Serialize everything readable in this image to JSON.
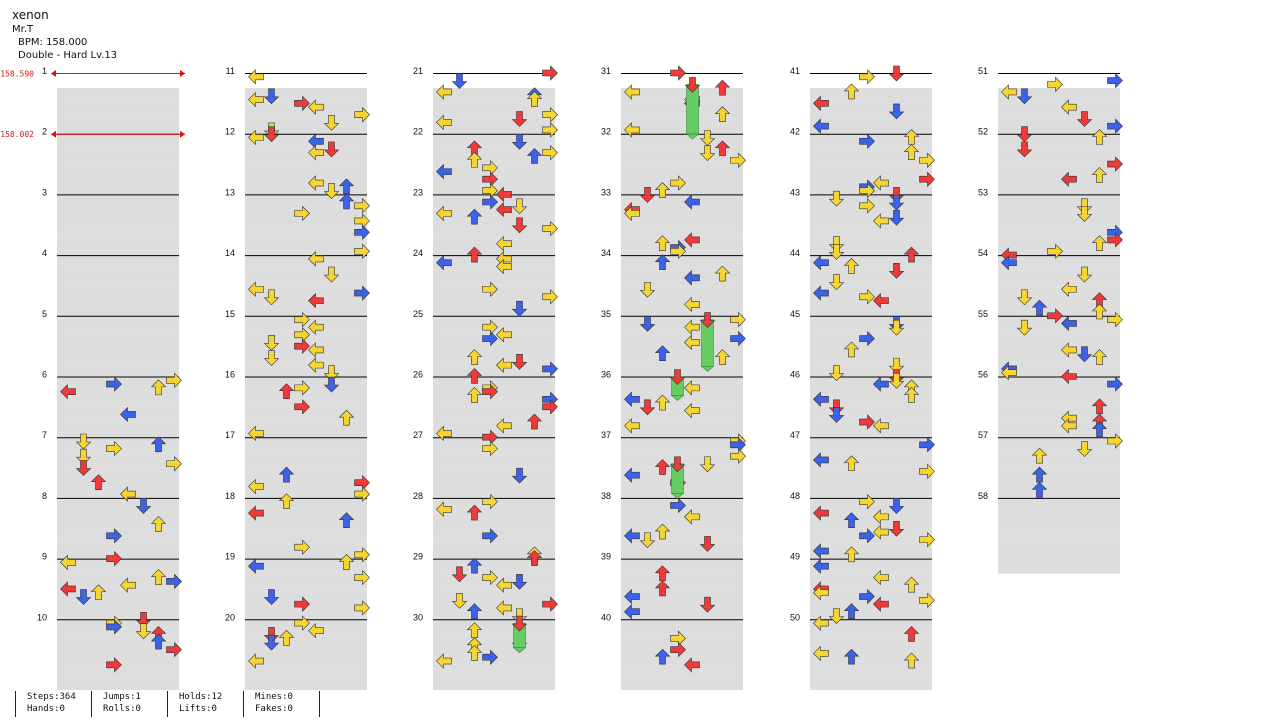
{
  "song": {
    "title": "xenon",
    "artist": "Mr.T",
    "bpm_text": "BPM: 158.000",
    "chart_text": "Double - Hard Lv.13"
  },
  "bpm_changes": [
    {
      "measure": 1,
      "label": "158.590"
    },
    {
      "measure": 2,
      "label": "158.002"
    }
  ],
  "measures": [
    "1",
    "2",
    "3",
    "4",
    "5",
    "6",
    "7",
    "8",
    "9",
    "10",
    "11",
    "12",
    "13",
    "14",
    "15",
    "16",
    "17",
    "18",
    "19",
    "20",
    "21",
    "22",
    "23",
    "24",
    "25",
    "26",
    "27",
    "28",
    "29",
    "30",
    "31",
    "32",
    "33",
    "34",
    "35",
    "36",
    "37",
    "38",
    "39",
    "40",
    "41",
    "42",
    "43",
    "44",
    "45",
    "46",
    "47",
    "48",
    "49",
    "50",
    "51",
    "52",
    "53",
    "54",
    "55",
    "56",
    "57",
    "58"
  ],
  "colors": {
    "red": "#ee3a3a",
    "blue": "#3b62e8",
    "yellow": "#f5d531",
    "green": "#66cc66",
    "band": "#dddddd",
    "bpm": "#dd1111"
  },
  "stats": {
    "steps": "Steps:364",
    "hands": "Hands:0",
    "jumps": "Jumps:1",
    "rolls": "Rolls:0",
    "holds": "Holds:12",
    "lifts": "Lifts:0",
    "mines": "Mines:0",
    "fakes": "Fakes:0"
  }
}
